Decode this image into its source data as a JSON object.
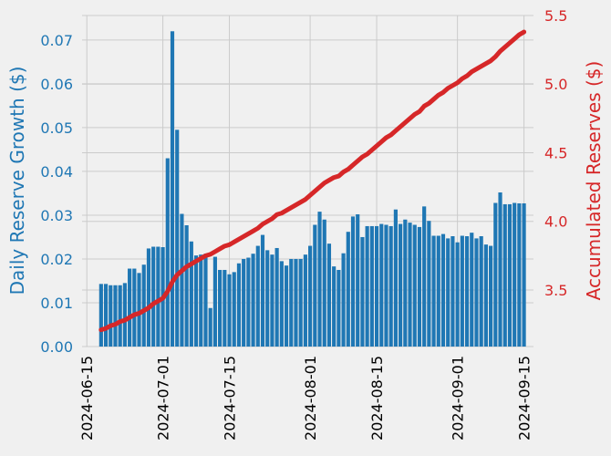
{
  "chart_data": {
    "type": "bar",
    "ylabel": "Daily Reserve Growth ($)",
    "y2label": "Accumulated Reserves ($)",
    "x": [
      "2024-06-18",
      "2024-06-19",
      "2024-06-20",
      "2024-06-21",
      "2024-06-22",
      "2024-06-23",
      "2024-06-24",
      "2024-06-25",
      "2024-06-26",
      "2024-06-27",
      "2024-06-28",
      "2024-06-29",
      "2024-06-30",
      "2024-07-01",
      "2024-07-02",
      "2024-07-03",
      "2024-07-04",
      "2024-07-05",
      "2024-07-06",
      "2024-07-07",
      "2024-07-08",
      "2024-07-09",
      "2024-07-10",
      "2024-07-11",
      "2024-07-12",
      "2024-07-13",
      "2024-07-14",
      "2024-07-15",
      "2024-07-16",
      "2024-07-17",
      "2024-07-18",
      "2024-07-19",
      "2024-07-20",
      "2024-07-21",
      "2024-07-22",
      "2024-07-23",
      "2024-07-24",
      "2024-07-25",
      "2024-07-26",
      "2024-07-27",
      "2024-07-28",
      "2024-07-29",
      "2024-07-30",
      "2024-07-31",
      "2024-08-01",
      "2024-08-02",
      "2024-08-03",
      "2024-08-04",
      "2024-08-05",
      "2024-08-06",
      "2024-08-07",
      "2024-08-08",
      "2024-08-09",
      "2024-08-10",
      "2024-08-11",
      "2024-08-12",
      "2024-08-13",
      "2024-08-14",
      "2024-08-15",
      "2024-08-16",
      "2024-08-17",
      "2024-08-18",
      "2024-08-19",
      "2024-08-20",
      "2024-08-21",
      "2024-08-22",
      "2024-08-23",
      "2024-08-24",
      "2024-08-25",
      "2024-08-26",
      "2024-08-27",
      "2024-08-28",
      "2024-08-29",
      "2024-08-30",
      "2024-08-31",
      "2024-09-01",
      "2024-09-02",
      "2024-09-03",
      "2024-09-04",
      "2024-09-05",
      "2024-09-06",
      "2024-09-07",
      "2024-09-08",
      "2024-09-09",
      "2024-09-10",
      "2024-09-11",
      "2024-09-12",
      "2024-09-13",
      "2024-09-14",
      "2024-09-15"
    ],
    "series": [
      {
        "type": "bar",
        "color": "#1f77b4",
        "values": [
          0.0143,
          0.0143,
          0.014,
          0.014,
          0.014,
          0.0145,
          0.0178,
          0.0178,
          0.0168,
          0.0187,
          0.0224,
          0.0228,
          0.0228,
          0.0227,
          0.043,
          0.072,
          0.0495,
          0.0303,
          0.0277,
          0.024,
          0.0208,
          0.021,
          0.0212,
          0.0088,
          0.0205,
          0.0175,
          0.0175,
          0.0165,
          0.017,
          0.019,
          0.02,
          0.0203,
          0.0212,
          0.023,
          0.0255,
          0.022,
          0.021,
          0.0225,
          0.0195,
          0.0185,
          0.02,
          0.02,
          0.02,
          0.021,
          0.023,
          0.0278,
          0.0308,
          0.029,
          0.0235,
          0.0183,
          0.0175,
          0.0213,
          0.0262,
          0.0297,
          0.0302,
          0.025,
          0.0275,
          0.0275,
          0.0275,
          0.028,
          0.0278,
          0.0275,
          0.0313,
          0.028,
          0.029,
          0.0283,
          0.0278,
          0.0273,
          0.032,
          0.0287,
          0.0253,
          0.0253,
          0.0257,
          0.0247,
          0.0252,
          0.0238,
          0.0253,
          0.0252,
          0.026,
          0.0247,
          0.0252,
          0.0233,
          0.023,
          0.0328,
          0.0352,
          0.0325,
          0.0325,
          0.0328,
          0.0327,
          0.0327
        ]
      },
      {
        "type": "line",
        "axis": "y2",
        "color": "#d62728",
        "values": [
          3.21,
          3.22,
          3.24,
          3.25,
          3.27,
          3.28,
          3.3,
          3.32,
          3.33,
          3.35,
          3.37,
          3.4,
          3.42,
          3.44,
          3.49,
          3.56,
          3.61,
          3.64,
          3.67,
          3.69,
          3.71,
          3.73,
          3.75,
          3.76,
          3.78,
          3.8,
          3.82,
          3.83,
          3.85,
          3.87,
          3.89,
          3.91,
          3.93,
          3.95,
          3.98,
          4.0,
          4.02,
          4.05,
          4.06,
          4.08,
          4.1,
          4.12,
          4.14,
          4.16,
          4.19,
          4.22,
          4.25,
          4.28,
          4.3,
          4.32,
          4.33,
          4.36,
          4.38,
          4.41,
          4.44,
          4.47,
          4.49,
          4.52,
          4.55,
          4.58,
          4.61,
          4.63,
          4.66,
          4.69,
          4.72,
          4.75,
          4.78,
          4.8,
          4.84,
          4.86,
          4.89,
          4.92,
          4.94,
          4.97,
          4.99,
          5.01,
          5.04,
          5.06,
          5.09,
          5.11,
          5.13,
          5.15,
          5.17,
          5.2,
          5.24,
          5.27,
          5.3,
          5.33,
          5.36,
          5.38
        ]
      }
    ],
    "xlim": [
      "2024-06-14",
      "2024-09-17"
    ],
    "xticks": [
      "2024-06-15",
      "2024-07-01",
      "2024-07-15",
      "2024-08-01",
      "2024-08-15",
      "2024-09-01",
      "2024-09-15"
    ],
    "ylim": [
      0,
      0.0756
    ],
    "yticks": [
      {
        "value": 0,
        "label": "0.00"
      },
      {
        "value": 0.01,
        "label": "0.01"
      },
      {
        "value": 0.02,
        "label": "0.02"
      },
      {
        "value": 0.03,
        "label": "0.03"
      },
      {
        "value": 0.04,
        "label": "0.04"
      },
      {
        "value": 0.05,
        "label": "0.05"
      },
      {
        "value": 0.06,
        "label": "0.06"
      },
      {
        "value": 0.07,
        "label": "0.07"
      }
    ],
    "y2lim": [
      3.088,
      5.5
    ],
    "y2ticks": [
      3.5,
      {
        "value": 4,
        "label": "4.0"
      },
      4.5,
      {
        "value": 5,
        "label": "5.0"
      },
      5.5
    ],
    "grid": true
  }
}
